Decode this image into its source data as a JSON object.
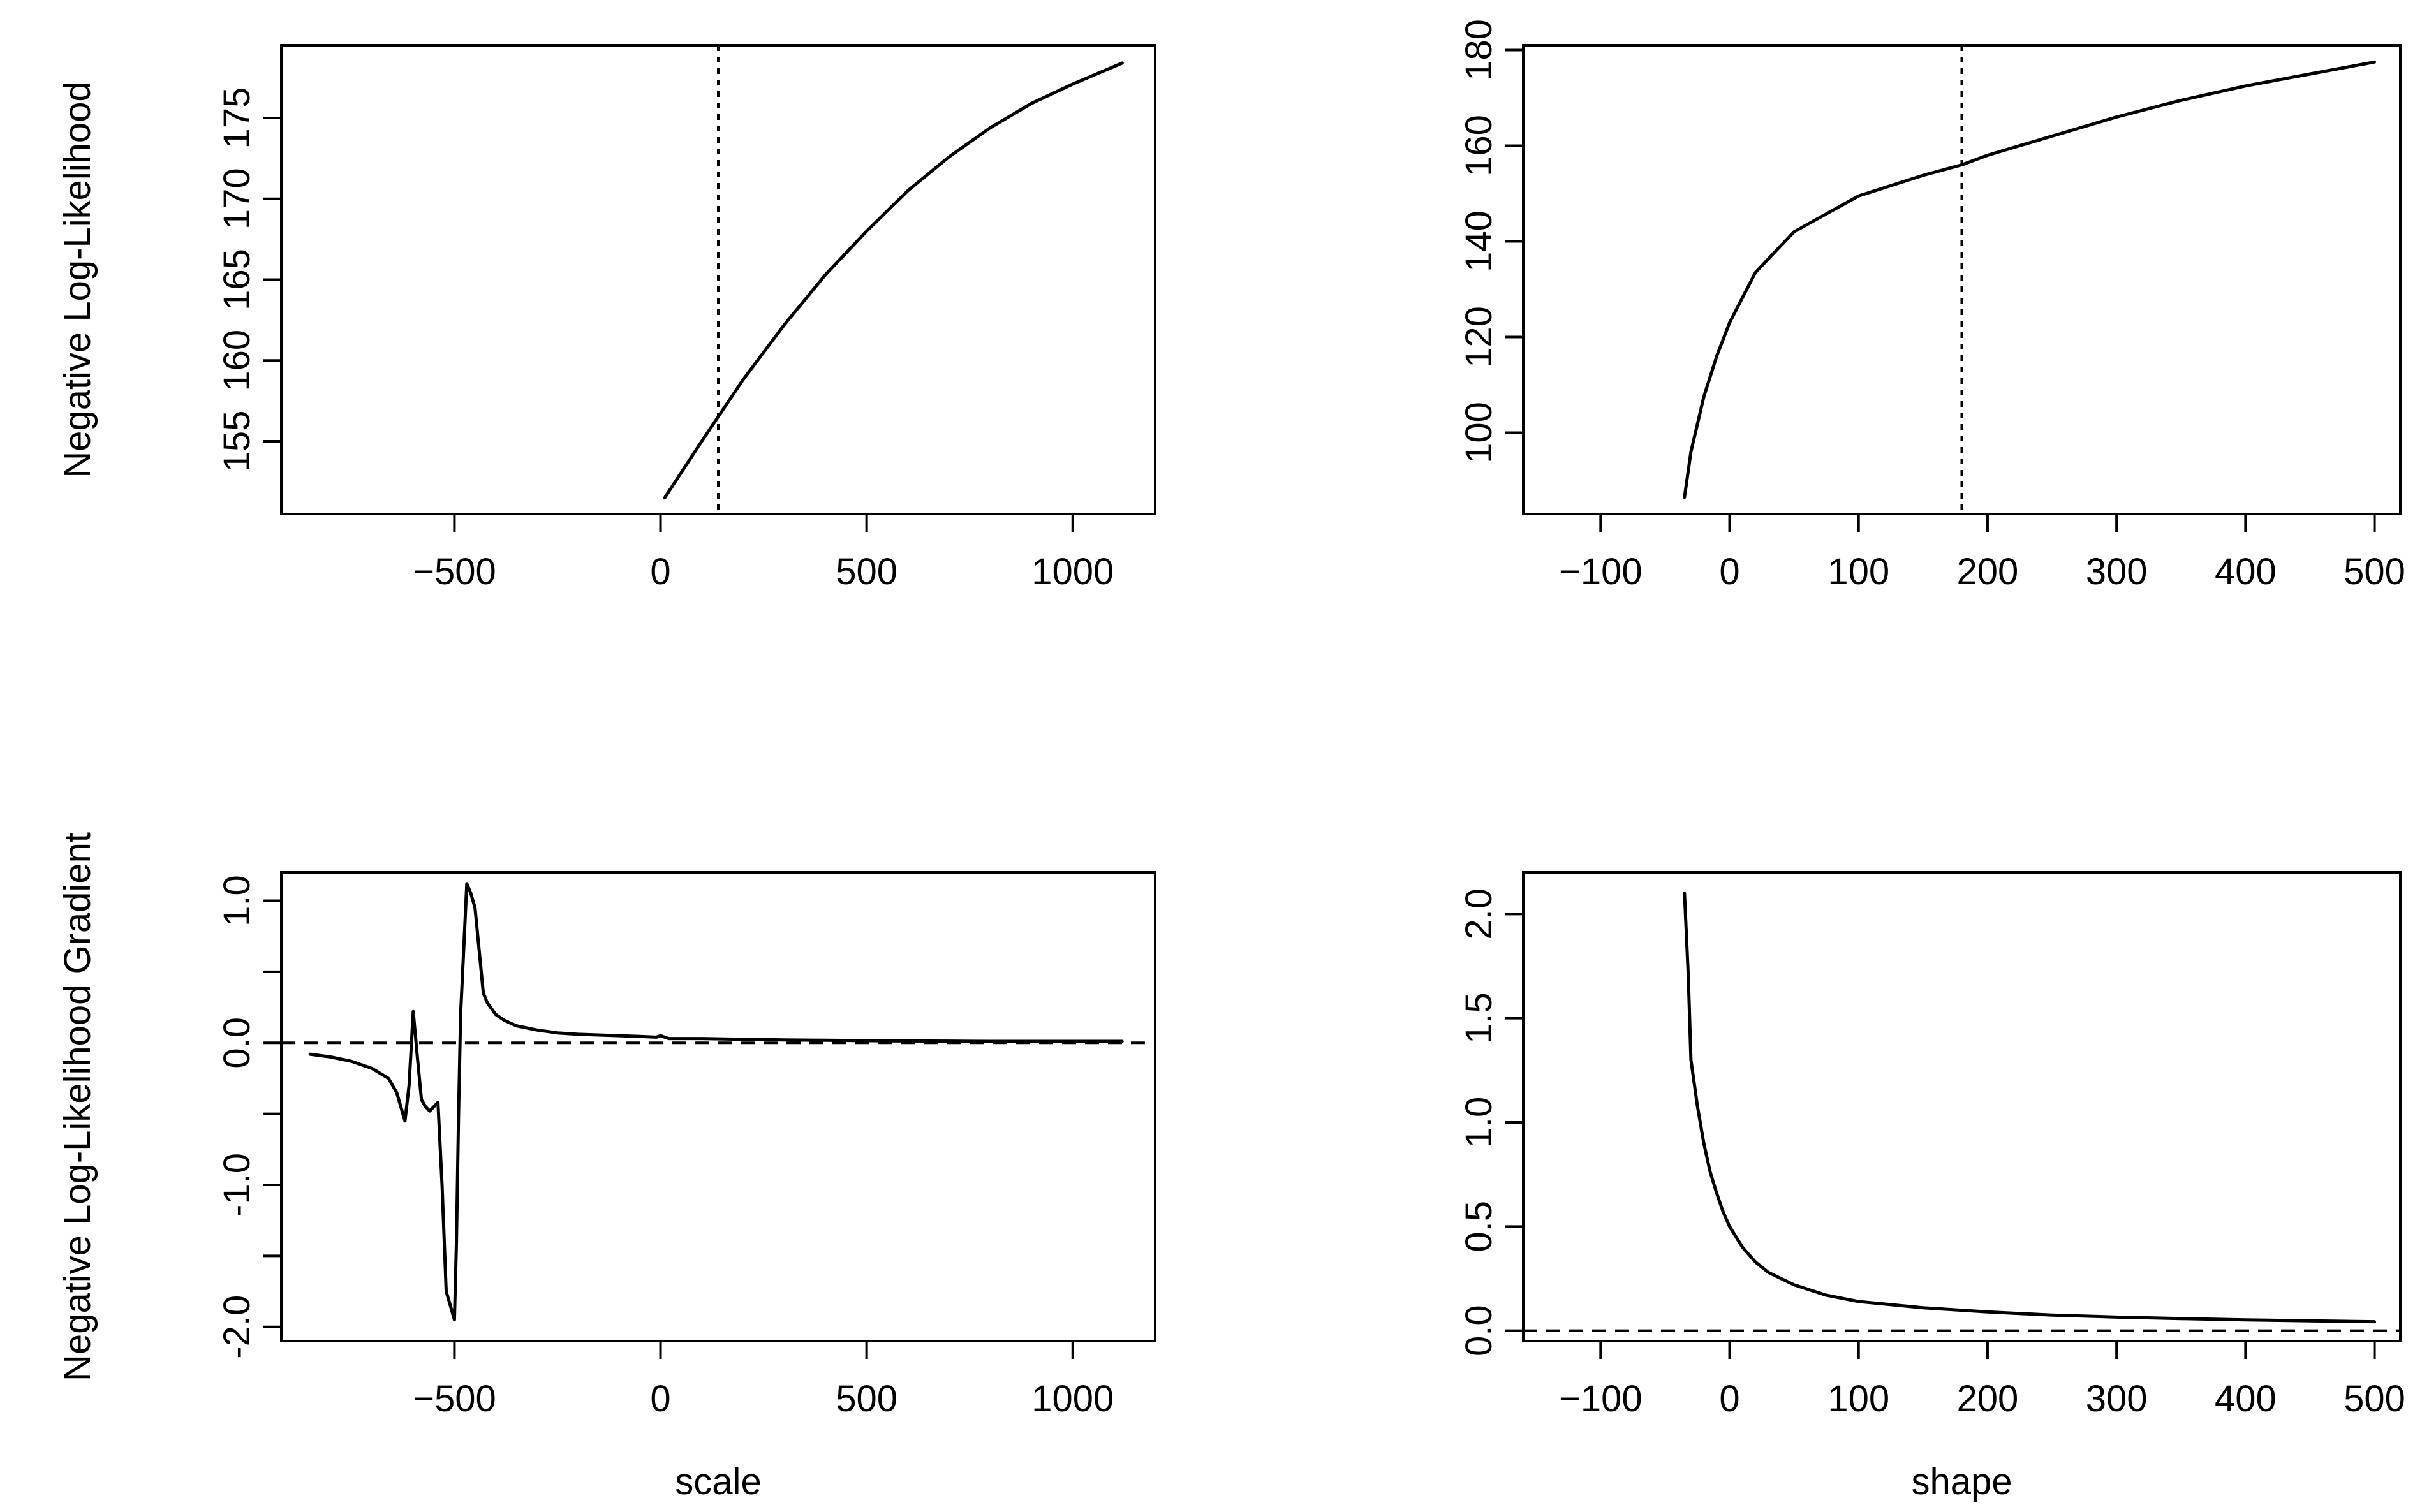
{
  "figure": {
    "layout": "2x2 grid of R base-graphics plots",
    "line_color": "#000000",
    "background": "#ffffff"
  },
  "chart_data": [
    {
      "id": "scale-nll",
      "type": "line",
      "title": "",
      "xlabel": "",
      "ylabel": "Negative Log-Likelihood",
      "xlim": [
        -920,
        1200
      ],
      "ylim": [
        150.5,
        179.5
      ],
      "x_ticks": [
        -500,
        0,
        500,
        1000
      ],
      "x_tick_labels": [
        "−500",
        "0",
        "500",
        "1000"
      ],
      "y_ticks": [
        155,
        160,
        165,
        170,
        175
      ],
      "y_tick_labels": [
        "155",
        "160",
        "165",
        "170",
        "175"
      ],
      "grid": false,
      "legend": "none",
      "series": [
        {
          "style": "solid",
          "x": [
            10,
            100,
            200,
            300,
            400,
            500,
            600,
            700,
            800,
            900,
            1000,
            1120
          ],
          "y": [
            151.5,
            155.0,
            158.8,
            162.2,
            165.3,
            168.0,
            170.5,
            172.6,
            174.4,
            175.9,
            177.1,
            178.4
          ]
        }
      ],
      "vlines": [
        {
          "x": 140,
          "style": "dotted"
        }
      ],
      "hlines": []
    },
    {
      "id": "shape-nll",
      "type": "line",
      "title": "",
      "xlabel": "",
      "ylabel": "",
      "xlim": [
        -160,
        520
      ],
      "ylim": [
        83,
        181
      ],
      "x_ticks": [
        -100,
        0,
        100,
        200,
        300,
        400,
        500
      ],
      "x_tick_labels": [
        "−100",
        "0",
        "100",
        "200",
        "300",
        "400",
        "500"
      ],
      "y_ticks": [
        100,
        120,
        140,
        160,
        180
      ],
      "y_tick_labels": [
        "100",
        "120",
        "140",
        "160",
        "180"
      ],
      "grid": false,
      "legend": "none",
      "series": [
        {
          "style": "solid",
          "x": [
            -35,
            -30,
            -20,
            -10,
            0,
            20,
            50,
            100,
            150,
            180,
            200,
            250,
            300,
            350,
            400,
            450,
            500
          ],
          "y": [
            86.5,
            96,
            107.5,
            116,
            123,
            133.5,
            142,
            149.5,
            153.8,
            156,
            158,
            162,
            166,
            169.5,
            172.5,
            175,
            177.5
          ]
        }
      ],
      "vlines": [
        {
          "x": 180,
          "style": "dotted"
        }
      ],
      "hlines": []
    },
    {
      "id": "scale-gradient",
      "type": "line",
      "title": "",
      "xlabel": "scale",
      "ylabel": "Negative Log-Likelihood Gradient",
      "xlim": [
        -920,
        1200
      ],
      "ylim": [
        -2.1,
        1.2
      ],
      "x_ticks": [
        -500,
        0,
        500,
        1000
      ],
      "x_tick_labels": [
        "−500",
        "0",
        "500",
        "1000"
      ],
      "y_ticks": [
        -2.0,
        -1.5,
        -1.0,
        -0.5,
        0.0,
        0.5,
        1.0
      ],
      "y_tick_labels": [
        "-2.0",
        "",
        "-1.0",
        "",
        "0.0",
        "",
        "1.0"
      ],
      "grid": false,
      "legend": "none",
      "series": [
        {
          "style": "solid",
          "x": [
            -850,
            -800,
            -750,
            -700,
            -660,
            -640,
            -630,
            -620,
            -610,
            -600,
            -590,
            -580,
            -570,
            -560,
            -550,
            -540,
            -530,
            -520,
            -510,
            -500,
            -495,
            -490,
            -485,
            -480,
            -470,
            -460,
            -450,
            -440,
            -430,
            -420,
            -400,
            -380,
            -350,
            -300,
            -250,
            -200,
            -150,
            -100,
            -50,
            -10,
            0,
            10,
            20,
            50,
            100,
            200,
            300,
            400,
            500,
            600,
            700,
            800,
            900,
            1000,
            1120
          ],
          "y": [
            -0.08,
            -0.1,
            -0.13,
            -0.18,
            -0.25,
            -0.35,
            -0.45,
            -0.55,
            -0.3,
            0.22,
            -0.1,
            -0.4,
            -0.45,
            -0.48,
            -0.45,
            -0.42,
            -1.0,
            -1.75,
            -1.85,
            -1.95,
            -1.4,
            -0.5,
            0.2,
            0.5,
            1.12,
            1.05,
            0.95,
            0.65,
            0.35,
            0.28,
            0.2,
            0.16,
            0.12,
            0.09,
            0.07,
            0.06,
            0.055,
            0.05,
            0.045,
            0.04,
            0.05,
            0.04,
            0.03,
            0.03,
            0.03,
            0.025,
            0.02,
            0.018,
            0.015,
            0.013,
            0.012,
            0.01,
            0.01,
            0.01,
            0.01
          ]
        }
      ],
      "vlines": [],
      "hlines": [
        {
          "y": 0.0,
          "style": "dashed"
        }
      ]
    },
    {
      "id": "shape-gradient",
      "type": "line",
      "title": "",
      "xlabel": "shape",
      "ylabel": "",
      "xlim": [
        -160,
        520
      ],
      "ylim": [
        -0.05,
        2.2
      ],
      "x_ticks": [
        -100,
        0,
        100,
        200,
        300,
        400,
        500
      ],
      "x_tick_labels": [
        "−100",
        "0",
        "100",
        "200",
        "300",
        "400",
        "500"
      ],
      "y_ticks": [
        0.0,
        0.5,
        1.0,
        1.5,
        2.0
      ],
      "y_tick_labels": [
        "0.0",
        "0.5",
        "1.0",
        "1.5",
        "2.0"
      ],
      "grid": false,
      "legend": "none",
      "series": [
        {
          "style": "solid",
          "x": [
            -35,
            -32,
            -30,
            -25,
            -20,
            -15,
            -10,
            -5,
            0,
            10,
            20,
            30,
            50,
            75,
            100,
            150,
            200,
            250,
            300,
            350,
            400,
            450,
            500
          ],
          "y": [
            2.1,
            1.7,
            1.3,
            1.08,
            0.9,
            0.76,
            0.66,
            0.57,
            0.5,
            0.4,
            0.33,
            0.28,
            0.22,
            0.17,
            0.14,
            0.11,
            0.09,
            0.075,
            0.065,
            0.058,
            0.052,
            0.047,
            0.043
          ]
        }
      ],
      "vlines": [],
      "hlines": [
        {
          "y": 0.0,
          "style": "dashed"
        }
      ]
    }
  ]
}
